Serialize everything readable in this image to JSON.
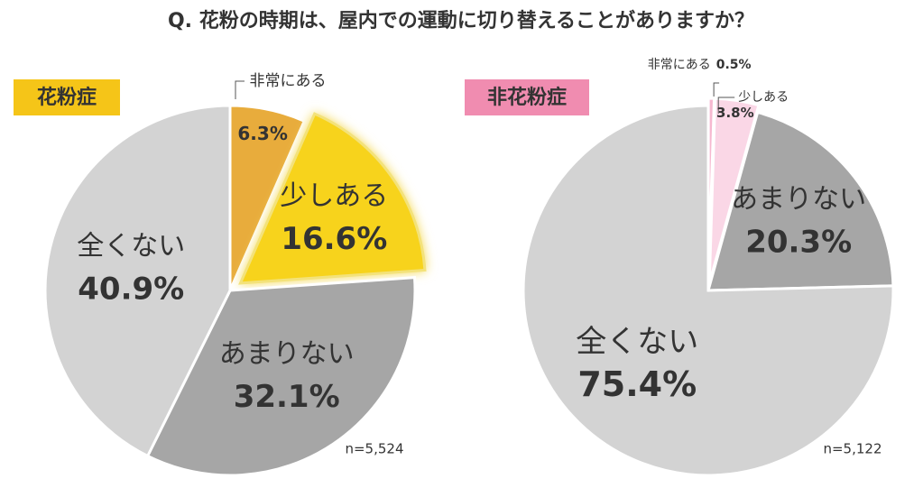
{
  "title": "Q. 花粉の時期は、屋内での運動に切り替えることがありますか？",
  "chart_data": [
    {
      "type": "pie",
      "title": "花粉症",
      "title_color": "#F5C518",
      "categories": [
        "非常にある",
        "少しある",
        "あまりない",
        "全くない"
      ],
      "values": [
        6.3,
        16.6,
        32.1,
        40.9
      ],
      "value_labels": [
        "6.3%",
        "16.6%",
        "32.1%",
        "40.9%"
      ],
      "colors": [
        "#E8AC3C",
        "#F7D31F",
        "#A6A6A6",
        "#D3D3D3"
      ],
      "note": "n=5,524"
    },
    {
      "type": "pie",
      "title": "非花粉症",
      "title_color": "#F08CB0",
      "categories": [
        "非常にある",
        "少しある",
        "あまりない",
        "全くない"
      ],
      "values": [
        0.5,
        3.8,
        20.3,
        75.4
      ],
      "value_labels": [
        "0.5%",
        "3.8%",
        "20.3%",
        "75.4%"
      ],
      "colors": [
        "#F6B8D0",
        "#FAD7E6",
        "#A6A6A6",
        "#D3D3D3"
      ],
      "note": "n=5,122"
    }
  ]
}
